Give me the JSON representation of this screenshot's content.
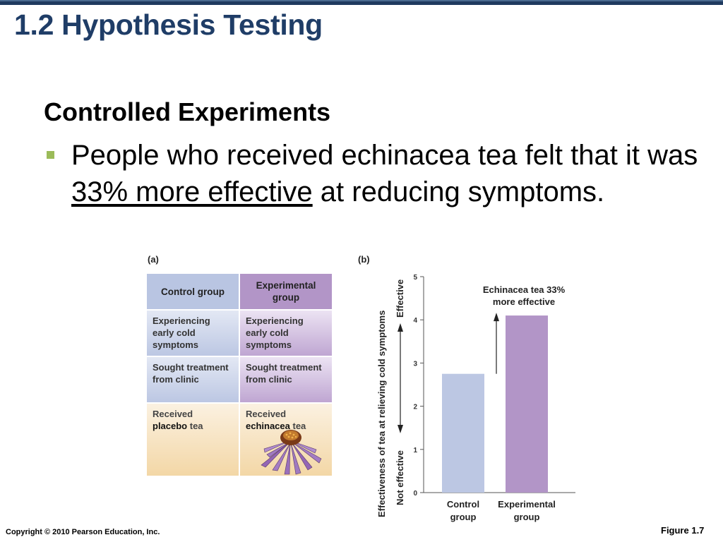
{
  "slide": {
    "title": "1.2 Hypothesis Testing",
    "subheading": "Controlled Experiments",
    "bullet": {
      "before": "People who received echinacea tea felt that it was ",
      "underlined": "33% more effective",
      "after": " at reducing symptoms."
    },
    "copyright": "Copyright © 2010 Pearson Education, Inc.",
    "figure_ref": "Figure 1.7"
  },
  "colors": {
    "title": "#1f3d67",
    "bullet": "#9bbb59",
    "control": "#bcc7e3",
    "experimental": "#b295c7"
  },
  "figure_a": {
    "label": "(a)",
    "headers": [
      "Control group",
      "Experimental group"
    ],
    "rows": [
      {
        "control": "Experiencing early cold symptoms",
        "experimental": "Experiencing early cold symptoms"
      },
      {
        "control": "Sought treatment from clinic",
        "experimental": "Sought treatment from clinic"
      },
      {
        "control_pre": "Received",
        "control_bold": "placebo",
        "control_post": "tea",
        "experimental_pre": "Received",
        "experimental_bold": "echinacea",
        "experimental_post": "tea"
      }
    ],
    "icon": "echinacea-flower-icon"
  },
  "figure_b": {
    "label": "(b)"
  },
  "chart_data": {
    "type": "bar",
    "categories": [
      "Control group",
      "Experimental group"
    ],
    "values": [
      2.75,
      4.1
    ],
    "colors": [
      "#bcc7e3",
      "#b295c7"
    ],
    "ylabel": "Effectiveness of tea at relieving cold symptoms",
    "ylabel_top": "Effective",
    "ylabel_bottom": "Not effective",
    "ylim": [
      0,
      5
    ],
    "yticks": [
      0,
      1,
      2,
      3,
      4,
      5
    ],
    "annotation": "Echinacea tea 33% more effective",
    "annotation_lines": [
      "Echinacea tea 33%",
      "more effective"
    ],
    "category_lines": [
      [
        "Control",
        "group"
      ],
      [
        "Experimental",
        "group"
      ]
    ],
    "grid": false
  }
}
